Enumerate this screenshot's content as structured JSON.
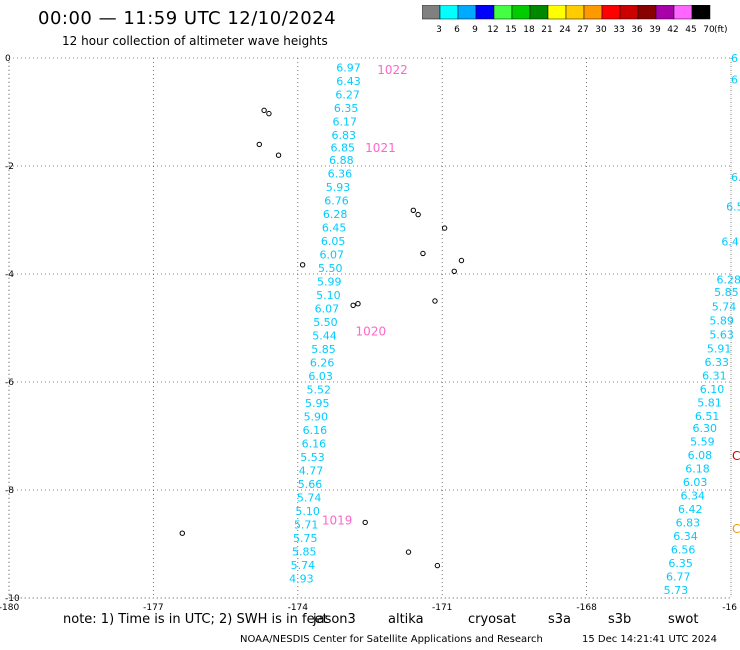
{
  "header": {
    "title": "00:00 — 11:59 UTC 12/10/2024",
    "subtitle": "12 hour collection of altimeter wave heights"
  },
  "color_scale": {
    "unit": "(ft)",
    "colors": [
      "#808080",
      "#00ffff",
      "#00aaff",
      "#0000ff",
      "#44ff44",
      "#00cc00",
      "#008800",
      "#ffff00",
      "#ffcc00",
      "#ff9900",
      "#ff0000",
      "#cc0000",
      "#880000",
      "#aa00aa",
      "#ff66ff",
      "#000000"
    ],
    "labels": [
      "3",
      "6",
      "9",
      "12",
      "15",
      "18",
      "21",
      "24",
      "27",
      "30",
      "33",
      "36",
      "39",
      "42",
      "45",
      "70"
    ]
  },
  "axes": {
    "x_labels": [
      "-180",
      "-177",
      "-174",
      "-171",
      "-168",
      "-16"
    ],
    "y_labels": [
      "0",
      "-2",
      "-4",
      "-6",
      "-8",
      "-10"
    ]
  },
  "chart_data": {
    "type": "scatter",
    "x_range": [
      -180,
      -165
    ],
    "y_range": [
      -10,
      0
    ],
    "tracks": [
      {
        "name": "track-1",
        "color": "#00ccff",
        "points": [
          {
            "lon": -173.2,
            "lat": -0.18,
            "value": "6.97"
          },
          {
            "lon": -173.2,
            "lat": -0.43,
            "value": "6.43"
          },
          {
            "lon": -173.22,
            "lat": -0.68,
            "value": "6.27"
          },
          {
            "lon": -173.25,
            "lat": -0.93,
            "value": "6.35"
          },
          {
            "lon": -173.28,
            "lat": -1.18,
            "value": "6.17"
          },
          {
            "lon": -173.3,
            "lat": -1.43,
            "value": "6.83"
          },
          {
            "lon": -173.32,
            "lat": -1.66,
            "value": "6.85"
          },
          {
            "lon": -173.35,
            "lat": -1.89,
            "value": "6.88"
          },
          {
            "lon": -173.38,
            "lat": -2.14,
            "value": "6.36"
          },
          {
            "lon": -173.42,
            "lat": -2.39,
            "value": "5.93"
          },
          {
            "lon": -173.45,
            "lat": -2.64,
            "value": "6.76"
          },
          {
            "lon": -173.48,
            "lat": -2.89,
            "value": "6.28"
          },
          {
            "lon": -173.5,
            "lat": -3.14,
            "value": "6.45"
          },
          {
            "lon": -173.52,
            "lat": -3.39,
            "value": "6.05"
          },
          {
            "lon": -173.55,
            "lat": -3.64,
            "value": "6.07"
          },
          {
            "lon": -173.58,
            "lat": -3.89,
            "value": "5.50"
          },
          {
            "lon": -173.6,
            "lat": -4.14,
            "value": "5.99"
          },
          {
            "lon": -173.62,
            "lat": -4.39,
            "value": "5.10"
          },
          {
            "lon": -173.65,
            "lat": -4.64,
            "value": "6.07"
          },
          {
            "lon": -173.68,
            "lat": -4.89,
            "value": "5.50"
          },
          {
            "lon": -173.7,
            "lat": -5.14,
            "value": "5.44"
          },
          {
            "lon": -173.72,
            "lat": -5.39,
            "value": "5.85"
          },
          {
            "lon": -173.75,
            "lat": -5.64,
            "value": "6.26"
          },
          {
            "lon": -173.78,
            "lat": -5.89,
            "value": "6.03"
          },
          {
            "lon": -173.82,
            "lat": -6.14,
            "value": "5.52"
          },
          {
            "lon": -173.85,
            "lat": -6.39,
            "value": "5.95"
          },
          {
            "lon": -173.88,
            "lat": -6.64,
            "value": "5.90"
          },
          {
            "lon": -173.9,
            "lat": -6.89,
            "value": "6.16"
          },
          {
            "lon": -173.92,
            "lat": -7.14,
            "value": "6.16"
          },
          {
            "lon": -173.95,
            "lat": -7.39,
            "value": "5.53"
          },
          {
            "lon": -173.98,
            "lat": -7.64,
            "value": "4.77"
          },
          {
            "lon": -174.0,
            "lat": -7.89,
            "value": "5.66"
          },
          {
            "lon": -174.02,
            "lat": -8.14,
            "value": "5.74"
          },
          {
            "lon": -174.05,
            "lat": -8.39,
            "value": "5.10"
          },
          {
            "lon": -174.08,
            "lat": -8.64,
            "value": "5.71"
          },
          {
            "lon": -174.1,
            "lat": -8.89,
            "value": "5.75"
          },
          {
            "lon": -174.12,
            "lat": -9.14,
            "value": "5.85"
          },
          {
            "lon": -174.15,
            "lat": -9.39,
            "value": "5.74"
          },
          {
            "lon": -174.18,
            "lat": -9.64,
            "value": "4.93"
          }
        ]
      },
      {
        "name": "track-2",
        "color": "#00ccff",
        "points": [
          {
            "lon": -165.0,
            "lat": -0.0,
            "value": "6"
          },
          {
            "lon": -165.0,
            "lat": -0.4,
            "value": "6"
          },
          {
            "lon": -165.0,
            "lat": -2.2,
            "value": "6."
          },
          {
            "lon": -165.1,
            "lat": -2.75,
            "value": "6.5"
          },
          {
            "lon": -165.2,
            "lat": -3.4,
            "value": "6.4"
          },
          {
            "lon": -165.3,
            "lat": -4.1,
            "value": "6.28"
          },
          {
            "lon": -165.35,
            "lat": -4.33,
            "value": "5.85"
          },
          {
            "lon": -165.4,
            "lat": -4.6,
            "value": "5.74"
          },
          {
            "lon": -165.45,
            "lat": -4.86,
            "value": "5.89"
          },
          {
            "lon": -165.45,
            "lat": -5.12,
            "value": "5.63"
          },
          {
            "lon": -165.5,
            "lat": -5.38,
            "value": "5.91"
          },
          {
            "lon": -165.55,
            "lat": -5.63,
            "value": "6.33"
          },
          {
            "lon": -165.6,
            "lat": -5.88,
            "value": "6.31"
          },
          {
            "lon": -165.65,
            "lat": -6.13,
            "value": "6.10"
          },
          {
            "lon": -165.7,
            "lat": -6.38,
            "value": "5.81"
          },
          {
            "lon": -165.75,
            "lat": -6.63,
            "value": "6.51"
          },
          {
            "lon": -165.8,
            "lat": -6.85,
            "value": "6.30"
          },
          {
            "lon": -165.85,
            "lat": -7.1,
            "value": "5.59"
          },
          {
            "lon": -165.9,
            "lat": -7.35,
            "value": "6.08"
          },
          {
            "lon": -165.95,
            "lat": -7.6,
            "value": "6.18"
          },
          {
            "lon": -166.0,
            "lat": -7.85,
            "value": "6.03"
          },
          {
            "lon": -166.05,
            "lat": -8.1,
            "value": "6.34"
          },
          {
            "lon": -166.1,
            "lat": -8.35,
            "value": "6.42"
          },
          {
            "lon": -166.15,
            "lat": -8.6,
            "value": "6.83"
          },
          {
            "lon": -166.2,
            "lat": -8.85,
            "value": "6.34"
          },
          {
            "lon": -166.25,
            "lat": -9.1,
            "value": "6.56"
          },
          {
            "lon": -166.3,
            "lat": -9.35,
            "value": "6.35"
          },
          {
            "lon": -166.35,
            "lat": -9.6,
            "value": "6.77"
          },
          {
            "lon": -166.4,
            "lat": -9.85,
            "value": "5.73"
          }
        ]
      }
    ],
    "pressure_labels": [
      {
        "lon": -172.35,
        "lat": -0.2,
        "value": "1022"
      },
      {
        "lon": -172.6,
        "lat": -1.65,
        "value": "1021"
      },
      {
        "lon": -172.8,
        "lat": -5.05,
        "value": "1020"
      },
      {
        "lon": -173.5,
        "lat": -8.55,
        "value": "1019"
      }
    ],
    "islands": [
      {
        "lon": -174.7,
        "lat": -0.97
      },
      {
        "lon": -174.6,
        "lat": -1.03
      },
      {
        "lon": -174.8,
        "lat": -1.6
      },
      {
        "lon": -174.4,
        "lat": -1.8
      },
      {
        "lon": -171.6,
        "lat": -2.82
      },
      {
        "lon": -171.5,
        "lat": -2.9
      },
      {
        "lon": -170.95,
        "lat": -3.15
      },
      {
        "lon": -171.4,
        "lat": -3.62
      },
      {
        "lon": -170.6,
        "lat": -3.75
      },
      {
        "lon": -170.75,
        "lat": -3.95
      },
      {
        "lon": -173.9,
        "lat": -3.83
      },
      {
        "lon": -172.85,
        "lat": -4.58
      },
      {
        "lon": -172.75,
        "lat": -4.55
      },
      {
        "lon": -171.15,
        "lat": -4.5
      },
      {
        "lon": -172.6,
        "lat": -8.6
      },
      {
        "lon": -171.7,
        "lat": -9.15
      },
      {
        "lon": -171.1,
        "lat": -9.4
      },
      {
        "lon": -176.4,
        "lat": -8.8
      }
    ],
    "edge_marks": [
      {
        "lon": -164.6,
        "lat": -7.35,
        "value": "C",
        "color": "#cc0000"
      },
      {
        "lon": -164.6,
        "lat": -8.7,
        "value": "C",
        "color": "#ff9900"
      }
    ]
  },
  "footer": {
    "note": "note:  1) Time is in UTC; 2) SWH is in feet",
    "satellites": [
      {
        "name": "jason3",
        "color": "#008800"
      },
      {
        "name": "altika",
        "color": "#ff9900"
      },
      {
        "name": "cryosat",
        "color": "#ff0000"
      },
      {
        "name": "s3a",
        "color": "#880000"
      },
      {
        "name": "s3b",
        "color": "#aa88ff"
      },
      {
        "name": "swot",
        "color": "#ff88ff"
      }
    ],
    "credit": "NOAA/NESDIS Center for Satellite Applications and Research",
    "timestamp": "15 Dec 14:21:41 UTC 2024"
  }
}
